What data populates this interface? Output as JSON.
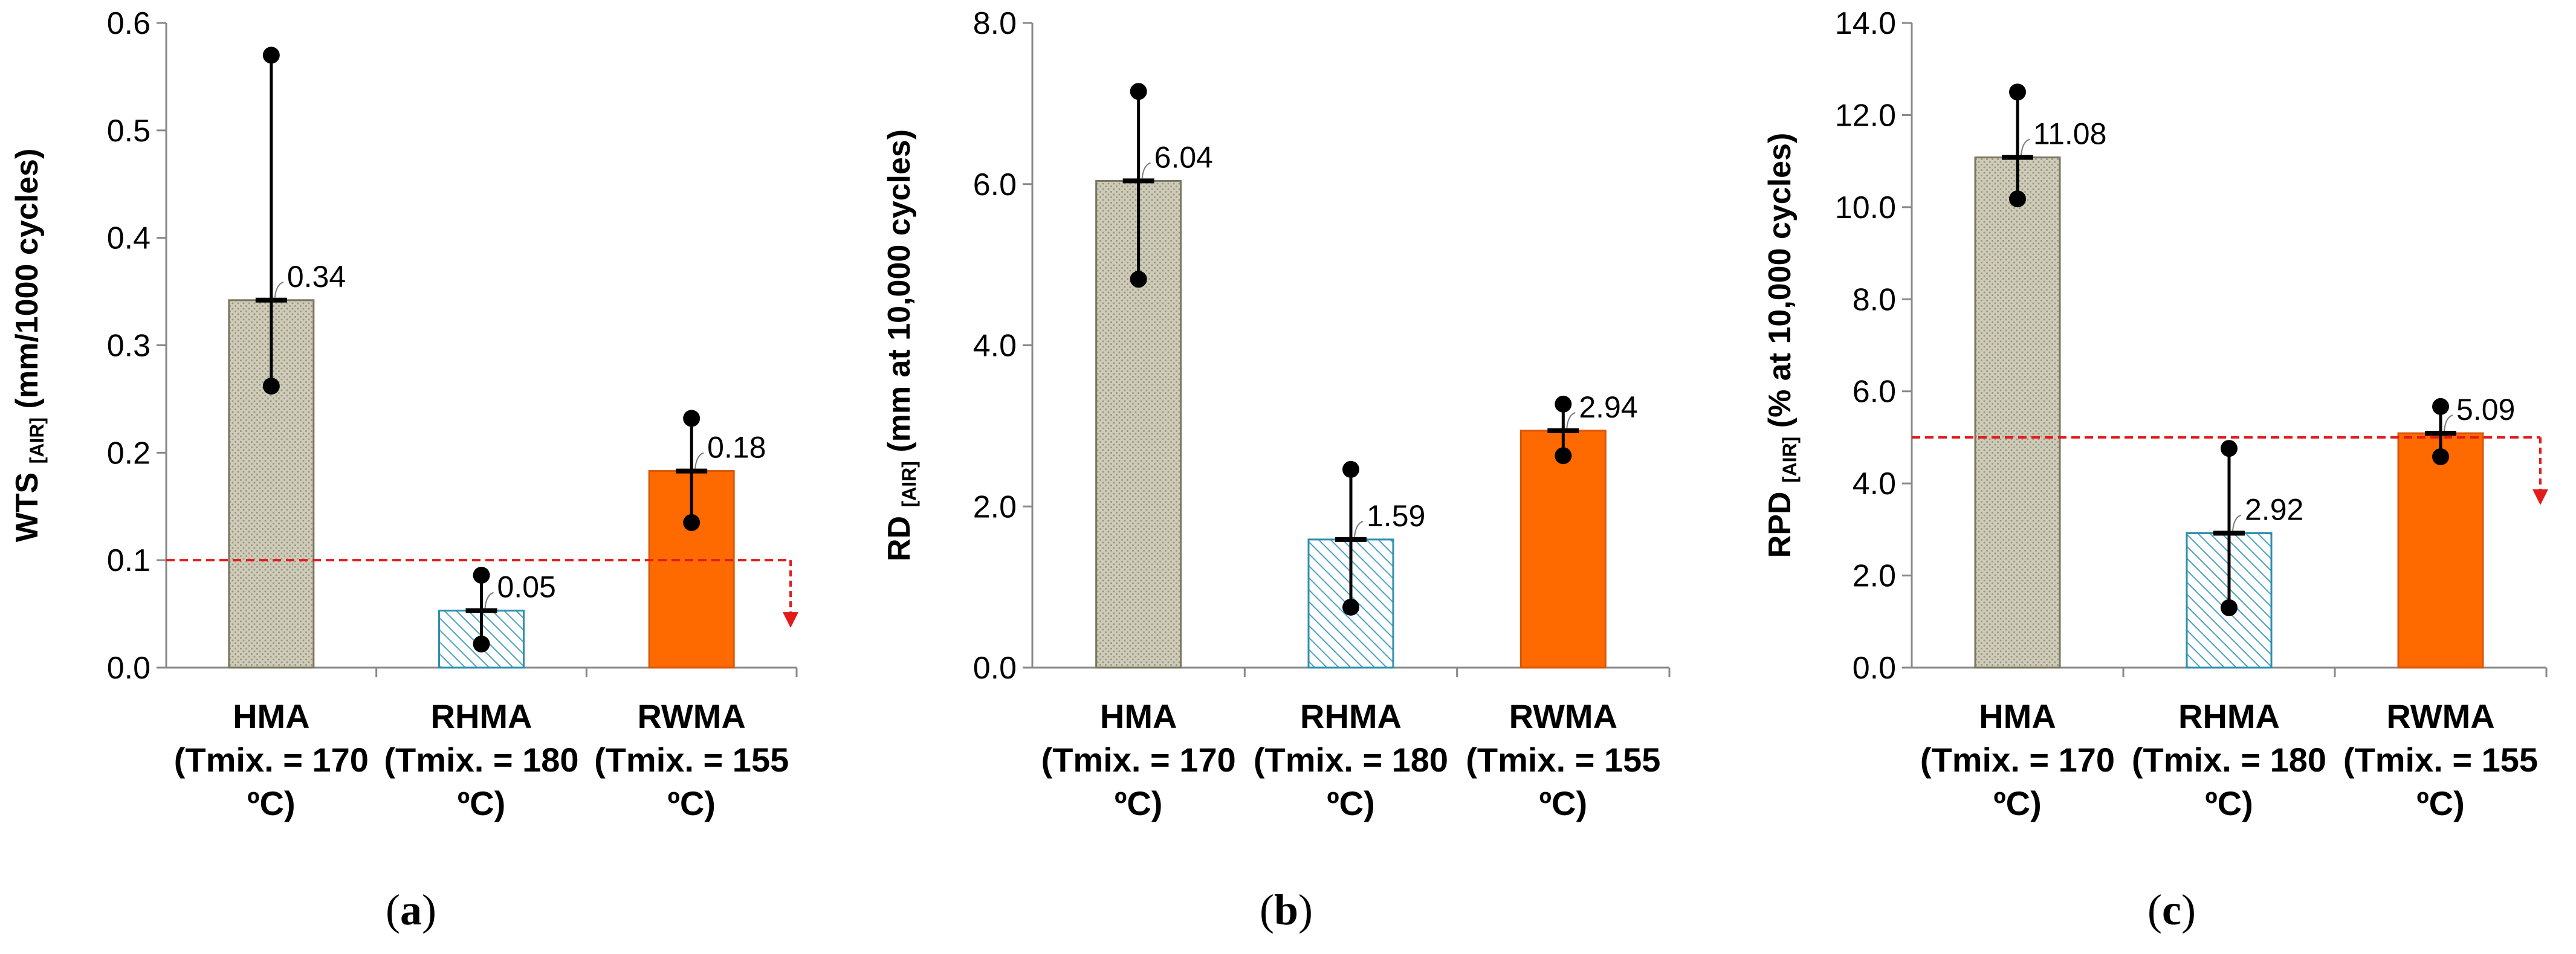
{
  "chart_data": [
    {
      "type": "bar",
      "panel": "a",
      "ylabel_main": "WTS",
      "ylabel_sub": "[AIR]",
      "ylabel_unit": "(mm/1000 cycles)",
      "ylim": [
        0,
        0.6
      ],
      "yticks": [
        "0.0",
        "0.1",
        "0.2",
        "0.3",
        "0.4",
        "0.5",
        "0.6"
      ],
      "yticks_values": [
        0,
        0.1,
        0.2,
        0.3,
        0.4,
        0.5,
        0.6
      ],
      "threshold": 0.1,
      "threshold_arrow": "down",
      "bars": [
        {
          "category_lines": [
            "HMA",
            "(Tmix. = 170",
            "ºC)"
          ],
          "value": 0.342,
          "label": "0.34",
          "err_low": 0.262,
          "err_high": 0.57,
          "style": "dotted-gray"
        },
        {
          "category_lines": [
            "RHMA",
            "(Tmix. = 180",
            "ºC)"
          ],
          "value": 0.053,
          "label": "0.05",
          "err_low": 0.022,
          "err_high": 0.086,
          "style": "hatched-blue"
        },
        {
          "category_lines": [
            "RWMA",
            "(Tmix. = 155",
            "ºC)"
          ],
          "value": 0.183,
          "label": "0.18",
          "err_low": 0.135,
          "err_high": 0.232,
          "style": "solid-orange"
        }
      ]
    },
    {
      "type": "bar",
      "panel": "b",
      "ylabel_main": "RD",
      "ylabel_sub": "[AIR]",
      "ylabel_unit": "(mm at 10,000 cycles)",
      "ylim": [
        0,
        8.0
      ],
      "yticks": [
        "0.0",
        "2.0",
        "4.0",
        "6.0",
        "8.0"
      ],
      "yticks_values": [
        0,
        2,
        4,
        6,
        8
      ],
      "threshold": null,
      "bars": [
        {
          "category_lines": [
            "HMA",
            "(Tmix. = 170",
            "ºC)"
          ],
          "value": 6.04,
          "label": "6.04",
          "err_low": 4.82,
          "err_high": 7.15,
          "style": "dotted-gray"
        },
        {
          "category_lines": [
            "RHMA",
            "(Tmix. = 180",
            "ºC)"
          ],
          "value": 1.59,
          "label": "1.59",
          "err_low": 0.75,
          "err_high": 2.46,
          "style": "hatched-blue"
        },
        {
          "category_lines": [
            "RWMA",
            "(Tmix. = 155",
            "ºC)"
          ],
          "value": 2.94,
          "label": "2.94",
          "err_low": 2.63,
          "err_high": 3.27,
          "style": "solid-orange"
        }
      ]
    },
    {
      "type": "bar",
      "panel": "c",
      "ylabel_main": "RPD",
      "ylabel_sub": "[AIR]",
      "ylabel_unit": "(% at 10,000 cycles)",
      "ylim": [
        0,
        14.0
      ],
      "yticks": [
        "0.0",
        "2.0",
        "4.0",
        "6.0",
        "8.0",
        "10.0",
        "12.0",
        "14.0"
      ],
      "yticks_values": [
        0,
        2,
        4,
        6,
        8,
        10,
        12,
        14
      ],
      "threshold": 5.0,
      "threshold_arrow": "down",
      "bars": [
        {
          "category_lines": [
            "HMA",
            "(Tmix. = 170",
            "ºC)"
          ],
          "value": 11.08,
          "label": "11.08",
          "err_low": 10.18,
          "err_high": 12.5,
          "style": "dotted-gray"
        },
        {
          "category_lines": [
            "RHMA",
            "(Tmix. = 180",
            "ºC)"
          ],
          "value": 2.92,
          "label": "2.92",
          "err_low": 1.3,
          "err_high": 4.76,
          "style": "hatched-blue"
        },
        {
          "category_lines": [
            "RWMA",
            "(Tmix. = 155",
            "ºC)"
          ],
          "value": 5.09,
          "label": "5.09",
          "err_low": 4.58,
          "err_high": 5.67,
          "style": "solid-orange"
        }
      ]
    }
  ],
  "colors": {
    "gray_fill": "#cfcbb9",
    "gray_dot": "#9a9580",
    "gray_stroke": "#7a765f",
    "blue_stroke": "#2e8fae",
    "blue_hatch": "#4aa3c4",
    "orange_fill": "#ff6a00",
    "orange_stroke": "#d9570a",
    "threshold": "#e21b1b",
    "axis": "#888888"
  }
}
